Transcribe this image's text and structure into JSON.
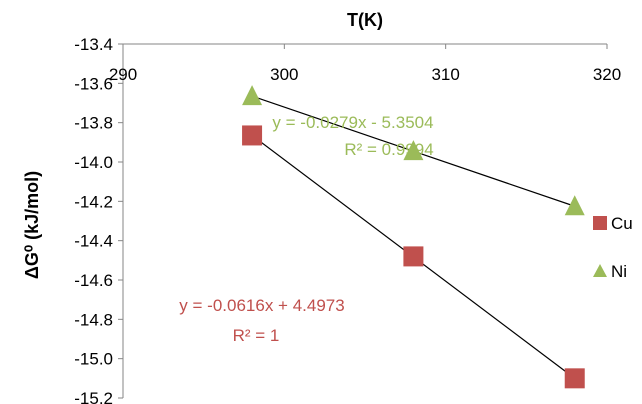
{
  "chart_data": {
    "type": "scatter",
    "xlabel": "T(K)",
    "ylabel": "ΔG⁰ (kJ/mol)",
    "xlim": [
      290,
      320
    ],
    "ylim": [
      -15.2,
      -13.4
    ],
    "x_ticks": [
      "290",
      "300",
      "310",
      "320"
    ],
    "y_ticks": [
      "-13.4",
      "-13.6",
      "-13.8",
      "-14.0",
      "-14.2",
      "-14.4",
      "-14.6",
      "-14.8",
      "-15.0",
      "-15.2"
    ],
    "legend_position": "right",
    "series": [
      {
        "name": "Cu",
        "marker": "square",
        "color": "#C0504D",
        "x": [
          298,
          308,
          318
        ],
        "y": [
          -13.865,
          -14.48,
          -15.1
        ],
        "trendline": {
          "slope": -0.0616,
          "intercept": 4.4973,
          "equation": "y = -0.0616x + 4.4973",
          "r2": "R² = 1"
        }
      },
      {
        "name": "Ni",
        "marker": "triangle",
        "color": "#9BBB59",
        "x": [
          298,
          308,
          318
        ],
        "y": [
          -13.665,
          -13.945,
          -14.225
        ],
        "trendline": {
          "slope": -0.0279,
          "intercept": -5.3504,
          "equation": "y = -0.0279x - 5.3504",
          "r2": "R² = 0.9994"
        }
      }
    ]
  }
}
